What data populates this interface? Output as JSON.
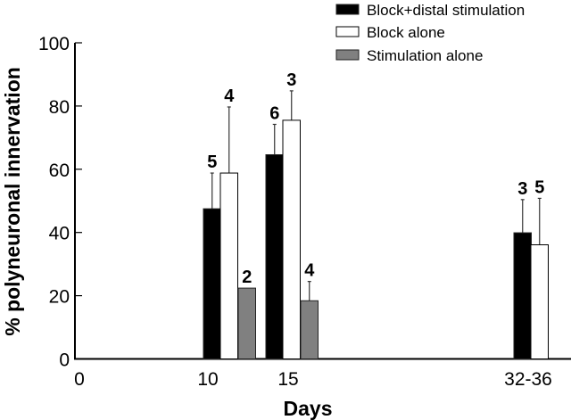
{
  "chart_data": {
    "type": "bar",
    "title": "",
    "xlabel": "Days",
    "ylabel": "% polyneuronal innervation",
    "ylim": [
      0,
      100
    ],
    "yticks": [
      0,
      20,
      40,
      60,
      80,
      100
    ],
    "x_tick_labels": [
      "0",
      "10",
      "15",
      "32-36"
    ],
    "categories": [
      "10",
      "15",
      "32-36"
    ],
    "grid": false,
    "legend_position": "top-right",
    "series": [
      {
        "name": "Block+distal stimulation",
        "color": "#000000",
        "values": [
          47.5,
          64.6,
          39.9
        ],
        "error_upper": [
          58.8,
          74.2,
          50.4
        ],
        "n": [
          "5",
          "6",
          "3"
        ]
      },
      {
        "name": "Block alone",
        "color": "#ffffff",
        "values": [
          58.8,
          75.5,
          36.1
        ],
        "error_upper": [
          79.7,
          84.8,
          50.8
        ],
        "n": [
          "4",
          "3",
          "5"
        ]
      },
      {
        "name": "Stimulation alone",
        "color": "#808080",
        "values": [
          22.4,
          18.4,
          null
        ],
        "error_upper": [
          null,
          24.5,
          null
        ],
        "n": [
          "2",
          "4",
          null
        ]
      }
    ]
  }
}
